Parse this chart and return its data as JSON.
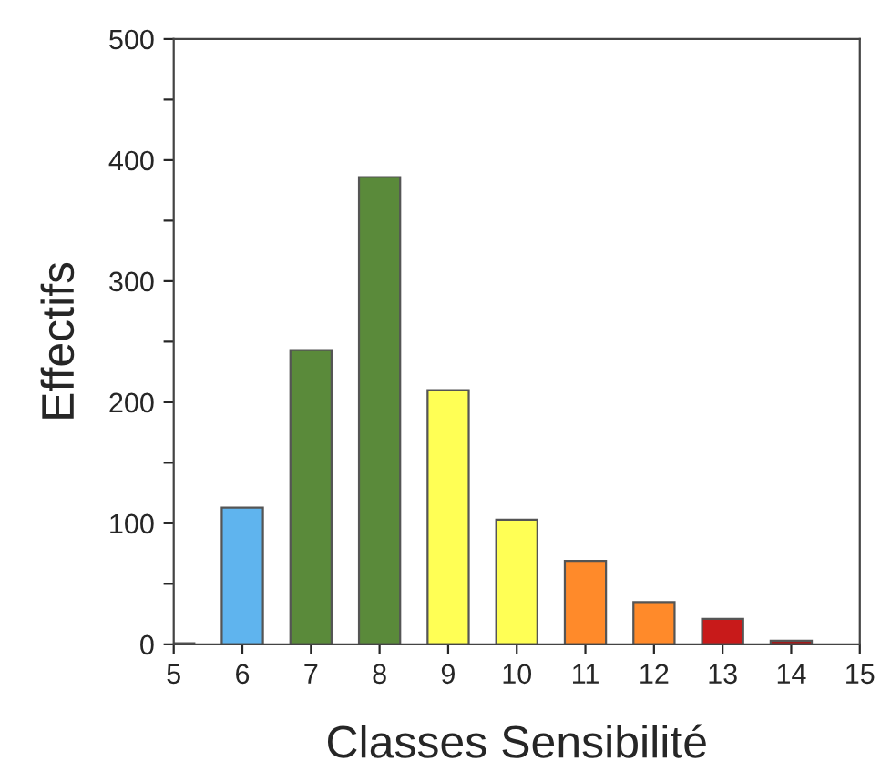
{
  "chart_data": {
    "type": "bar",
    "xlabel": "Classes Sensibilité",
    "ylabel": "Effectifs",
    "x": [
      5,
      6,
      7,
      8,
      9,
      10,
      11,
      12,
      13,
      14
    ],
    "values": [
      1,
      113,
      243,
      386,
      210,
      103,
      69,
      35,
      21,
      3
    ],
    "colors": [
      "#8b1a1a",
      "#5fb4ee",
      "#5a8a3a",
      "#5a8a3a",
      "#ffff55",
      "#ffff55",
      "#ff8a2a",
      "#ff8a2a",
      "#c81a1a",
      "#a01a1a"
    ],
    "xlim": [
      5,
      15
    ],
    "xticks": [
      5,
      6,
      7,
      8,
      9,
      10,
      11,
      12,
      13,
      14,
      15
    ],
    "ylim": [
      0,
      500
    ],
    "yticks": [
      0,
      {
        "value": 50,
        "label": null
      },
      100,
      {
        "value": 150,
        "label": null
      },
      200,
      {
        "value": 250,
        "label": null
      },
      300,
      {
        "value": 350,
        "label": null
      },
      400,
      {
        "value": 450,
        "label": null
      },
      500
    ],
    "grid": false,
    "legend": false
  }
}
